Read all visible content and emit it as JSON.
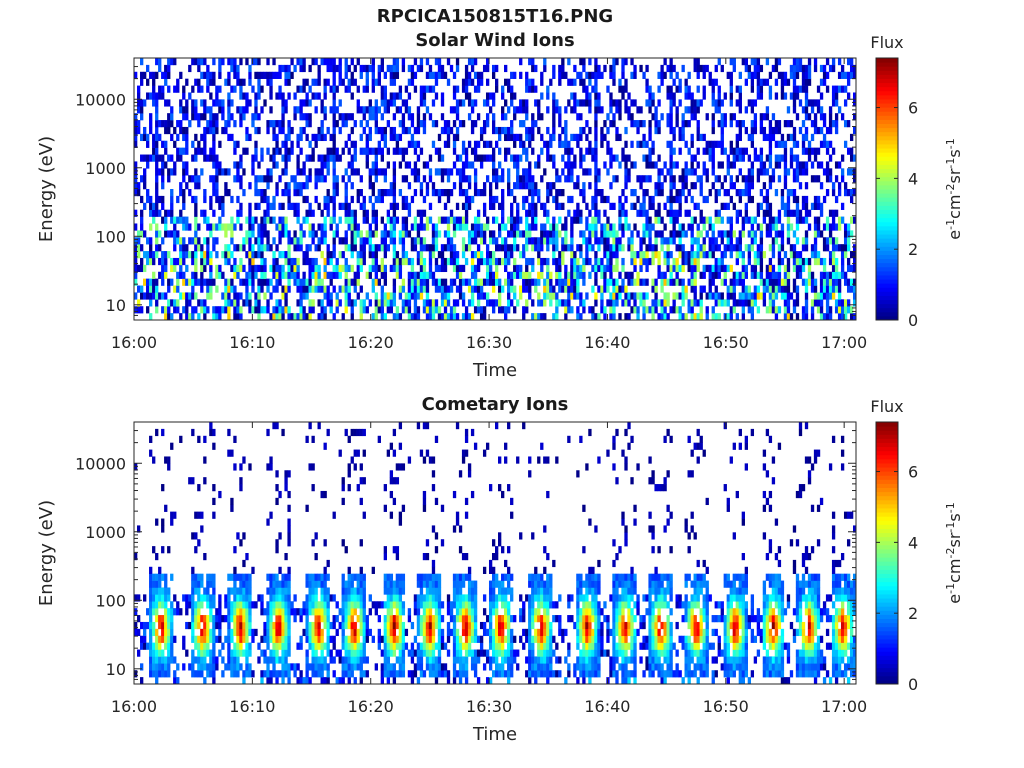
{
  "figure": {
    "title": "RPCICA150815T16.PNG"
  },
  "chart_data": [
    {
      "type": "heatmap",
      "title": "Solar Wind Ions",
      "xlabel": "Time",
      "ylabel": "Energy (eV)",
      "x_ticks": [
        "16:00",
        "16:10",
        "16:20",
        "16:30",
        "16:40",
        "16:50",
        "17:00"
      ],
      "x_range": [
        "16:00",
        "17:01"
      ],
      "y_scale": "log",
      "y_ticks": [
        10,
        100,
        1000,
        10000
      ],
      "y_tick_labels": [
        "10",
        "100",
        "1000",
        "10000"
      ],
      "y_range": [
        6,
        40000
      ],
      "colorbar": {
        "label": "Flux",
        "unit": "eV-1cm-2sr-1s-1",
        "range": [
          0,
          7.4
        ],
        "ticks": [
          "0",
          "2",
          "4",
          "6"
        ],
        "colormap": "jet"
      },
      "pattern": "broadband scattered low-flux counts (0-2) across 6 eV - 30 keV, with moderate flux (2-4) bursts below ~200 eV and vertical streaks near 16:02, 16:17, 16:39, 16:45"
    },
    {
      "type": "heatmap",
      "title": "Cometary Ions",
      "xlabel": "Time",
      "ylabel": "Energy (eV)",
      "x_ticks": [
        "16:00",
        "16:10",
        "16:20",
        "16:30",
        "16:40",
        "16:50",
        "17:00"
      ],
      "x_range": [
        "16:00",
        "17:01"
      ],
      "y_scale": "log",
      "y_ticks": [
        10,
        100,
        1000,
        10000
      ],
      "y_tick_labels": [
        "10",
        "100",
        "1000",
        "10000"
      ],
      "y_range": [
        6,
        40000
      ],
      "colorbar": {
        "label": "Flux",
        "unit": "eV-1cm-2sr-1s-1",
        "range": [
          0,
          7.4
        ],
        "ticks": [
          "0",
          "2",
          "4",
          "6"
        ],
        "colormap": "jet"
      },
      "burst_times_min": [
        2.3,
        5.8,
        9.0,
        12.2,
        15.6,
        18.6,
        22.0,
        25.0,
        28.0,
        31.0,
        34.4,
        38.3,
        41.5,
        44.5,
        47.5,
        50.8,
        54.0,
        57.0,
        59.9
      ],
      "burst_peak_energy_eV": 40,
      "burst_peak_flux": 6.5,
      "pattern": "quasi-periodic bursts every ~3.2 min peaking at 20-80 eV with high flux, sparse high-energy counts above 1 keV"
    }
  ],
  "colors": {
    "axis": "#262626",
    "background": "#ffffff"
  }
}
